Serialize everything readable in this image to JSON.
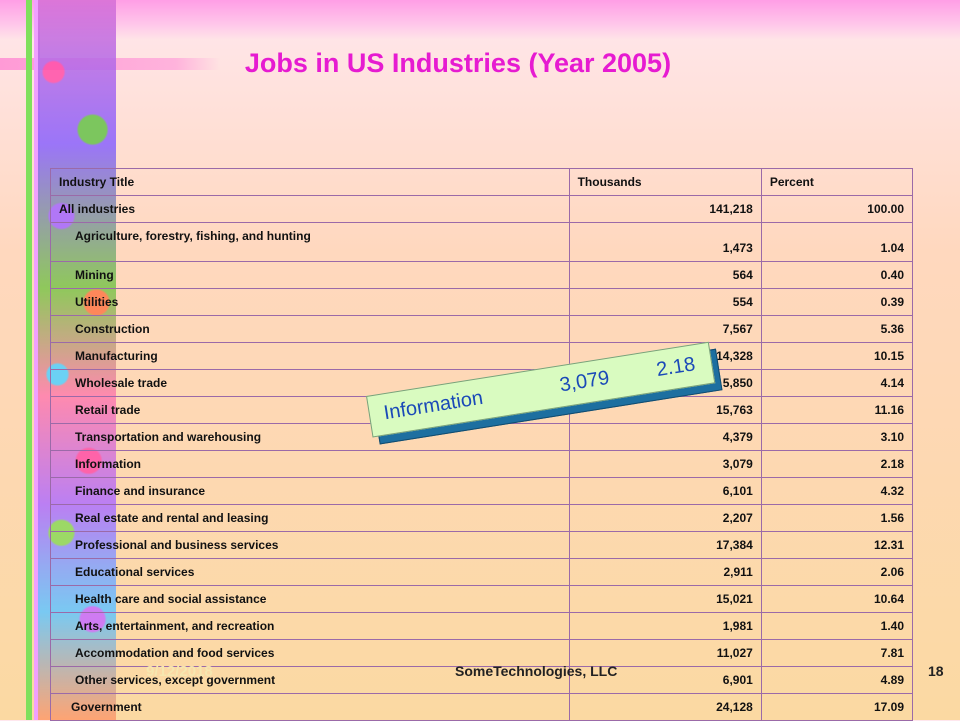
{
  "slide": {
    "title": "Jobs in US Industries (Year 2005)",
    "footer": {
      "date": "9/12/2018",
      "company": "SomeTechnologies, LLC",
      "page": "18"
    }
  },
  "table": {
    "headers": [
      "Industry Title",
      "Thousands",
      "Percent"
    ],
    "rows": [
      {
        "title": "All industries",
        "thousands": "141,218",
        "percent": "100.00"
      },
      {
        "title": "Agriculture, forestry, fishing, and hunting",
        "thousands": "1,473",
        "percent": "1.04"
      },
      {
        "title": "Mining",
        "thousands": "564",
        "percent": "0.40"
      },
      {
        "title": "Utilities",
        "thousands": "554",
        "percent": "0.39"
      },
      {
        "title": "Construction",
        "thousands": "7,567",
        "percent": "5.36"
      },
      {
        "title": "Manufacturing",
        "thousands": "14,328",
        "percent": "10.15"
      },
      {
        "title": "Wholesale trade",
        "thousands": "5,850",
        "percent": "4.14"
      },
      {
        "title": "Retail trade",
        "thousands": "15,763",
        "percent": "11.16"
      },
      {
        "title": "Transportation and warehousing",
        "thousands": "4,379",
        "percent": "3.10"
      },
      {
        "title": "Information",
        "thousands": "3,079",
        "percent": "2.18"
      },
      {
        "title": "Finance and insurance",
        "thousands": "6,101",
        "percent": "4.32"
      },
      {
        "title": "Real estate and rental and leasing",
        "thousands": "2,207",
        "percent": "1.56"
      },
      {
        "title": "Professional and business services",
        "thousands": "17,384",
        "percent": "12.31"
      },
      {
        "title": "Educational services",
        "thousands": "2,911",
        "percent": "2.06"
      },
      {
        "title": "Health care and social assistance",
        "thousands": "15,021",
        "percent": "10.64"
      },
      {
        "title": "Arts, entertainment, and recreation",
        "thousands": "1,981",
        "percent": "1.40"
      },
      {
        "title": "Accommodation and food services",
        "thousands": "11,027",
        "percent": "7.81"
      },
      {
        "title": "Other services, except government",
        "thousands": "6,901",
        "percent": "4.89"
      },
      {
        "title": "Government",
        "thousands": "24,128",
        "percent": "17.09"
      }
    ]
  },
  "callout": {
    "label": "Information",
    "thousands": "3,079",
    "percent": "2.18"
  },
  "colors": {
    "title": "#e61bd1",
    "callout_text": "#1a49b8",
    "callout_fill": "#d9fbc0",
    "callout_shadow": "#1d6fa0"
  }
}
